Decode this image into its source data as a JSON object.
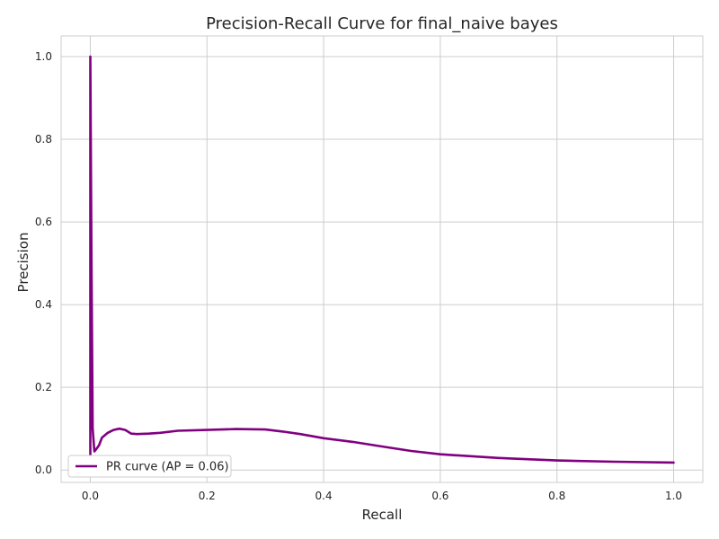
{
  "chart_data": {
    "type": "line",
    "title": "Precision-Recall Curve for final_naive bayes",
    "xlabel": "Recall",
    "ylabel": "Precision",
    "xlim": [
      -0.05,
      1.05
    ],
    "ylim": [
      -0.03,
      1.05
    ],
    "xticks": [
      0.0,
      0.2,
      0.4,
      0.6,
      0.8,
      1.0
    ],
    "xtick_labels": [
      "0.0",
      "0.2",
      "0.4",
      "0.6",
      "0.8",
      "1.0"
    ],
    "yticks": [
      0.0,
      0.2,
      0.4,
      0.6,
      0.8,
      1.0
    ],
    "ytick_labels": [
      "0.0",
      "0.2",
      "0.4",
      "0.6",
      "0.8",
      "1.0"
    ],
    "grid": true,
    "legend_position": "lower-left",
    "series": [
      {
        "name": "PR curve (AP = 0.06)",
        "color": "#800080",
        "x": [
          0.0,
          0.0,
          0.002,
          0.004,
          0.007,
          0.01,
          0.015,
          0.02,
          0.03,
          0.04,
          0.05,
          0.06,
          0.07,
          0.08,
          0.1,
          0.12,
          0.15,
          0.2,
          0.25,
          0.3,
          0.33,
          0.36,
          0.4,
          0.45,
          0.5,
          0.55,
          0.6,
          0.7,
          0.8,
          0.9,
          1.0
        ],
        "y": [
          0.0,
          1.0,
          0.5,
          0.1,
          0.045,
          0.05,
          0.06,
          0.078,
          0.09,
          0.097,
          0.1,
          0.097,
          0.088,
          0.087,
          0.088,
          0.09,
          0.095,
          0.097,
          0.099,
          0.098,
          0.093,
          0.087,
          0.077,
          0.068,
          0.057,
          0.046,
          0.038,
          0.029,
          0.023,
          0.02,
          0.018
        ]
      }
    ]
  }
}
